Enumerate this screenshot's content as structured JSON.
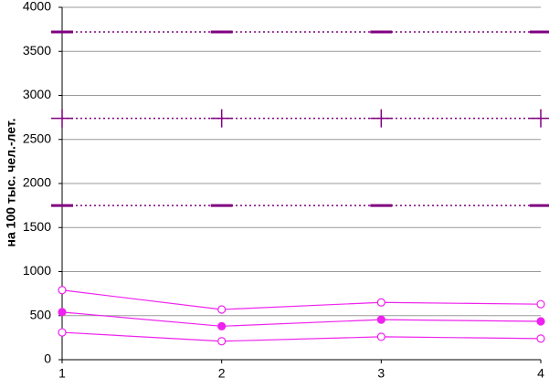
{
  "chart_data": {
    "type": "line",
    "y_label": "на 100 тыс. чел.-лет.",
    "x": [
      1,
      2,
      3,
      4
    ],
    "series": [
      {
        "color": "#800080",
        "marker": "dash",
        "line": "dotted",
        "values": [
          3720,
          3720,
          3720,
          3720
        ]
      },
      {
        "color": "#800080",
        "marker": "cross",
        "line": "dotted",
        "values": [
          2740,
          2740,
          2740,
          2740
        ]
      },
      {
        "color": "#800080",
        "marker": "dash",
        "line": "dotted",
        "values": [
          1750,
          1750,
          1750,
          1750
        ]
      },
      {
        "color": "#ee22ee",
        "marker": "open-circle",
        "line": "solid",
        "values": [
          790,
          570,
          650,
          630
        ]
      },
      {
        "color": "#ee22ee",
        "marker": "filled-circle",
        "line": "solid",
        "values": [
          540,
          380,
          455,
          435
        ]
      },
      {
        "color": "#ee22ee",
        "marker": "open-circle",
        "line": "solid",
        "values": [
          310,
          210,
          260,
          240
        ]
      }
    ],
    "xlim": [
      1,
      4
    ],
    "ylim": [
      0,
      4000
    ],
    "yticks": [
      0,
      500,
      1000,
      1500,
      2000,
      2500,
      3000,
      3500,
      4000
    ],
    "grid": true
  }
}
